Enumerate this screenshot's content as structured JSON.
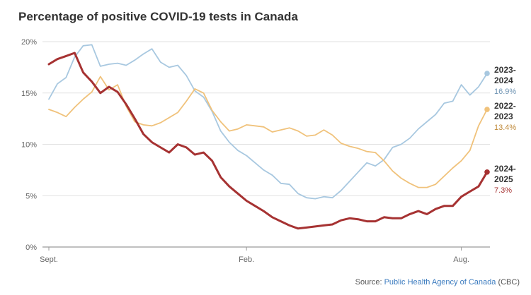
{
  "chart_data": {
    "type": "line",
    "title": "Percentage of positive COVID-19 tests in Canada",
    "xlabel": "",
    "ylabel": "",
    "ylim": [
      0,
      20
    ],
    "yticks": [
      0,
      5,
      10,
      15,
      20
    ],
    "ytick_labels": [
      "0%",
      "5%",
      "10%",
      "15%",
      "20%"
    ],
    "x_tick_labels": [
      {
        "week": 1,
        "label": "Sept."
      },
      {
        "week": 24,
        "label": "Feb."
      },
      {
        "week": 49,
        "label": "Aug."
      }
    ],
    "grid": true,
    "legend": "inline labels at right end of each line",
    "series": [
      {
        "name": "2023-2024",
        "label_lines": [
          "2023-",
          "2024"
        ],
        "end_label": "16.9%",
        "color": "#a8c8e0",
        "values": [
          14.4,
          15.9,
          16.5,
          18.5,
          19.6,
          19.7,
          17.6,
          17.8,
          17.9,
          17.7,
          18.2,
          18.8,
          19.3,
          18.0,
          17.5,
          17.7,
          16.7,
          15.2,
          14.6,
          13.2,
          11.3,
          10.2,
          9.4,
          8.9,
          8.2,
          7.5,
          7.0,
          6.2,
          6.1,
          5.2,
          4.8,
          4.7,
          4.9,
          4.8,
          5.5,
          6.4,
          7.3,
          8.2,
          7.9,
          8.5,
          9.7,
          10.0,
          10.6,
          11.5,
          12.2,
          12.9,
          14.0,
          14.2,
          15.8,
          14.8,
          15.6,
          16.9
        ]
      },
      {
        "name": "2022-2023",
        "label_lines": [
          "2022-",
          "2023"
        ],
        "end_label": "13.4%",
        "color": "#f0c27b",
        "values": [
          13.4,
          13.1,
          12.7,
          13.6,
          14.4,
          15.1,
          16.6,
          15.3,
          15.8,
          13.7,
          12.2,
          11.9,
          11.8,
          12.1,
          12.6,
          13.1,
          14.2,
          15.4,
          15.0,
          13.3,
          12.2,
          11.3,
          11.5,
          11.9,
          11.8,
          11.7,
          11.2,
          11.4,
          11.6,
          11.3,
          10.8,
          10.9,
          11.4,
          10.9,
          10.1,
          9.8,
          9.6,
          9.3,
          9.2,
          8.4,
          7.4,
          6.7,
          6.2,
          5.8,
          5.8,
          6.1,
          6.9,
          7.7,
          8.4,
          9.4,
          11.8,
          13.4
        ]
      },
      {
        "name": "2024-2025",
        "label_lines": [
          "2024-",
          "2025"
        ],
        "end_label": "7.3%",
        "color": "#a63232",
        "values": [
          17.8,
          18.3,
          18.6,
          18.9,
          17.0,
          16.1,
          15.0,
          15.6,
          15.1,
          13.9,
          12.5,
          11.0,
          10.2,
          9.7,
          9.2,
          10.0,
          9.7,
          9.0,
          9.2,
          8.4,
          6.8,
          5.9,
          5.2,
          4.5,
          4.0,
          3.5,
          2.9,
          2.5,
          2.1,
          1.8,
          1.9,
          2.0,
          2.1,
          2.2,
          2.6,
          2.8,
          2.7,
          2.5,
          2.5,
          2.9,
          2.8,
          2.8,
          3.2,
          3.5,
          3.2,
          3.7,
          4.0,
          4.0,
          4.9,
          5.4,
          5.9,
          7.3
        ]
      }
    ]
  },
  "source": {
    "prefix": "Source:",
    "link": "Public Health Agency of Canada",
    "suffix": "(CBC)"
  }
}
